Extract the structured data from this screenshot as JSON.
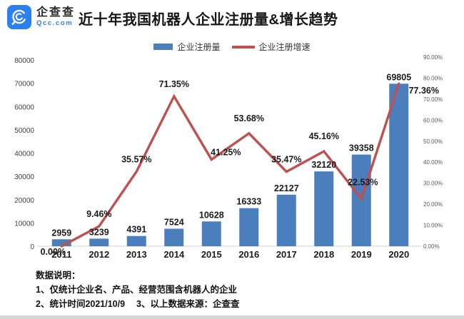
{
  "header": {
    "logo": {
      "name": "企查查",
      "domain": "Qcc.com"
    },
    "title": "近十年我国机器人企业注册量&增长趋势"
  },
  "legend": {
    "bar_label": "企业注册量",
    "line_label": "企业注册增速"
  },
  "colors": {
    "bar": "#4a7ebd",
    "line": "#c0504d",
    "logo_blue": "#2b7ff0",
    "axis_line": "#d9d9d9"
  },
  "chart_data": {
    "type": "combo-bar-line",
    "title": "近十年我国机器人企业注册量&增长趋势",
    "categories": [
      "2011",
      "2012",
      "2013",
      "2014",
      "2015",
      "2016",
      "2017",
      "2018",
      "2019",
      "2020"
    ],
    "series": [
      {
        "name": "企业注册量",
        "type": "bar",
        "axis": "left",
        "color": "#4a7ebd",
        "values": [
          2959,
          3239,
          4391,
          7524,
          10628,
          16333,
          22127,
          32120,
          39358,
          69805
        ],
        "data_labels": [
          "2959",
          "3239",
          "4391",
          "7524",
          "10628",
          "16333",
          "22127",
          "32120",
          "39358",
          "69805"
        ]
      },
      {
        "name": "企业注册增速",
        "type": "line",
        "axis": "right",
        "color": "#c0504d",
        "values": [
          0,
          9.46,
          35.57,
          71.35,
          41.25,
          53.68,
          35.47,
          45.16,
          22.53,
          77.36
        ],
        "data_labels": [
          "0.00%",
          "9.46%",
          "35.57%",
          "71.35%",
          "41.25%",
          "53.68%",
          "35.47%",
          "45.16%",
          "22.53%",
          "77.36%"
        ]
      }
    ],
    "left_axis": {
      "min": 0,
      "max": 80000,
      "step": 10000,
      "tick_labels": [
        "0",
        "10000",
        "20000",
        "30000",
        "40000",
        "50000",
        "60000",
        "70000",
        "80000"
      ]
    },
    "right_axis": {
      "min": 0,
      "max": 90,
      "step": 10,
      "tick_labels": [
        "0.00%",
        "10.00%",
        "20.00%",
        "30.00%",
        "40.00%",
        "50.00%",
        "60.00%",
        "70.00%",
        "80.00%",
        "90.00%"
      ]
    },
    "grid": "x-axis-baseline-only",
    "legend_position": "top-center"
  },
  "footer": {
    "heading": "数据说明：",
    "lines": [
      "1、仅统计企业名、产品、经营范围含机器人的企业",
      "2、统计时间2021/10/9　 3、以上数据来源：企查查"
    ]
  }
}
